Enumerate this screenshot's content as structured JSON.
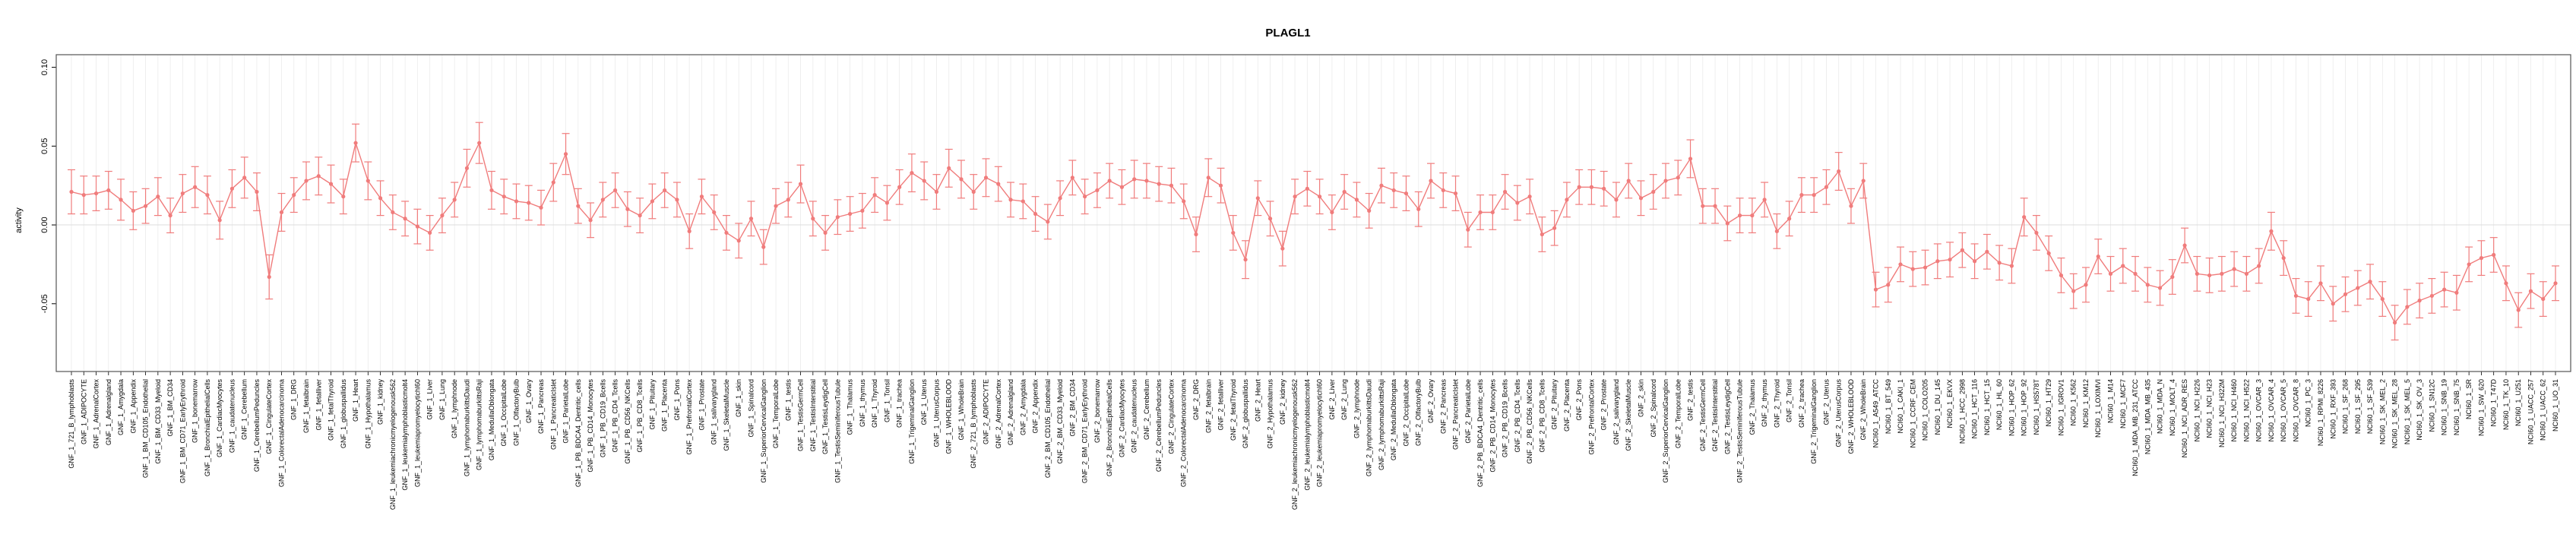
{
  "chart_data": {
    "type": "line",
    "title": "PLAGL1",
    "ylabel": "activity",
    "xlabel": "",
    "ylim": [
      -0.093,
      0.108
    ],
    "yticks": [
      -0.05,
      0.0,
      0.05,
      0.1
    ],
    "ytick_labels": [
      "-0.05",
      "0.00",
      "0.05",
      "0.10"
    ],
    "grid": true,
    "colors": {
      "series": "#f07c7c",
      "grid": "#ebebeb",
      "zero_line": "#dcdcdc",
      "frame": "#555555"
    },
    "categories": [
      "GNF_1_721_B_lymphoblasts",
      "GNF_1_ADIPOCYTE",
      "GNF_1_AdrenalCortex",
      "GNF_1_Adrenalgland",
      "GNF_1_Amygdala",
      "GNF_1_Appendix",
      "GNF_1_BM_CD105_Endothelial",
      "GNF_1_BM_CD33_Myeloid",
      "GNF_1_BM_CD34",
      "GNF_1_BM_CD71_EarlyErythroid",
      "GNF_1_bonemarrow",
      "GNF_1_BronchialEpithelialCells",
      "GNF_1_CardiacMyocytes",
      "GNF_1_caudatenucleus",
      "GNF_1_Cerebellum",
      "GNF_1_CerebellumPeduncles",
      "GNF_1_CingulateCortex",
      "GNF_1_ColorectalAdenocarcinoma",
      "GNF_1_DRG",
      "GNF_1_fetalbrain",
      "GNF_1_fetalliver",
      "GNF_1_fetalThyroid",
      "GNF_1_globuspallidus",
      "GNF_1_Heart",
      "GNF_1_Hypothalamus",
      "GNF_1_kidney",
      "GNF_1_leukemiachronicmyelogenousk562",
      "GNF_1_leukemialymphoblasticmolt4",
      "GNF_1_leukemiapromyelocytichl60",
      "GNF_1_Liver",
      "GNF_1_Lung",
      "GNF_1_lymphnode",
      "GNF_1_lymphomaburkittsDaudi",
      "GNF_1_lymphomaburkittsRaji",
      "GNF_1_MedullaOblongata",
      "GNF_1_OccipitalLobe",
      "GNF_1_OlfactoryBulb",
      "GNF_1_Ovary",
      "GNF_1_Pancreas",
      "GNF_1_PancreaticIslet",
      "GNF_1_ParietalLobe",
      "GNF_1_PB_BDCA4_Dentritic_cells",
      "GNF_1_PB_CD14_Monocytes",
      "GNF_1_PB_CD19_Bcells",
      "GNF_1_PB_CD4_Tcells",
      "GNF_1_PB_CD56_NKCells",
      "GNF_1_PB_CD8_Tcells",
      "GNF_1_Pituitary",
      "GNF_1_Placenta",
      "GNF_1_Pons",
      "GNF_1_PrefrontalCortex",
      "GNF_1_Prostate",
      "GNF_1_salivarygland",
      "GNF_1_SkeletalMuscle",
      "GNF_1_skin",
      "GNF_1_Spinalcord",
      "GNF_1_SuperiorCervicalGanglion",
      "GNF_1_TemporalLobe",
      "GNF_1_testis",
      "GNF_1_TestisGermCell",
      "GNF_1_TestisInterstitial",
      "GNF_1_TestisLeydigCell",
      "GNF_1_TestisSeminiferousTubule",
      "GNF_1_Thalamus",
      "GNF_1_thymus",
      "GNF_1_Thyroid",
      "GNF_1_Tonsil",
      "GNF_1_trachea",
      "GNF_1_TrigeminalGanglion",
      "GNF_1_Uterus",
      "GNF_1_UterusCorpus",
      "GNF_1_WHOLEBLOOD",
      "GNF_1_WholeBrain",
      "GNF_2_721_B_lymphoblasts",
      "GNF_2_ADIPOCYTE",
      "GNF_2_AdrenalCortex",
      "GNF_2_Adrenalgland",
      "GNF_2_Amygdala",
      "GNF_2_Appendix",
      "GNF_2_BM_CD105_Endothelial",
      "GNF_2_BM_CD33_Myeloid",
      "GNF_2_BM_CD34",
      "GNF_2_BM_CD71_EarlyErythroid",
      "GNF_2_bonemarrow",
      "GNF_2_BronchialEpithelialCells",
      "GNF_2_CardiacMyocytes",
      "GNF_2_caudatenucleus",
      "GNF_2_Cerebellum",
      "GNF_2_CerebellumPeduncles",
      "GNF_2_CingulateCortex",
      "GNF_2_ColorectalAdenocarcinoma",
      "GNF_2_DRG",
      "GNF_2_fetalbrain",
      "GNF_2_fetalliver",
      "GNF_2_fetalThyroid",
      "GNF_2_globuspallidus",
      "GNF_2_Heart",
      "GNF_2_Hypothalamus",
      "GNF_2_kidney",
      "GNF_2_leukemiachronicmyelogenousk562",
      "GNF_2_leukemialymphoblasticmolt4",
      "GNF_2_leukemiapromyelocytichl60",
      "GNF_2_Liver",
      "GNF_2_Lung",
      "GNF_2_lymphnode",
      "GNF_2_lymphomaburkittsDaudi",
      "GNF_2_lymphomaburkittsRaji",
      "GNF_2_MedullaOblongata",
      "GNF_2_OccipitalLobe",
      "GNF_2_OlfactoryBulb",
      "GNF_2_Ovary",
      "GNF_2_Pancreas",
      "GNF_2_PancreaticIslet",
      "GNF_2_ParietalLobe",
      "GNF_2_PB_BDCA4_Dentritic_cells",
      "GNF_2_PB_CD14_Monocytes",
      "GNF_2_PB_CD19_Bcells",
      "GNF_2_PB_CD4_Tcells",
      "GNF_2_PB_CD56_NKCells",
      "GNF_2_PB_CD8_Tcells",
      "GNF_2_Pituitary",
      "GNF_2_Placenta",
      "GNF_2_Pons",
      "GNF_2_PrefrontalCortex",
      "GNF_2_Prostate",
      "GNF_2_salivarygland",
      "GNF_2_SkeletalMuscle",
      "GNF_2_skin",
      "GNF_2_Spinalcord",
      "GNF_2_SuperiorCervicalGanglion",
      "GNF_2_TemporalLobe",
      "GNF_2_testis",
      "GNF_2_TestisGermCell",
      "GNF_2_TestisInterstitial",
      "GNF_2_TestisLeydigCell",
      "GNF_2_TestisSeminiferousTubule",
      "GNF_2_Thalamus",
      "GNF_2_thymus",
      "GNF_2_Thyroid",
      "GNF_2_Tonsil",
      "GNF_2_trachea",
      "GNF_2_TrigeminalGanglion",
      "GNF_2_Uterus",
      "GNF_2_UterusCorpus",
      "GNF_2_WHOLEBLOOD",
      "GNF_2_WholeBrain",
      "NCI60_1_A549_ATCC",
      "NCI60_1_BT_549",
      "NCI60_1_CAKI_1",
      "NCI60_1_CCRF_CEM",
      "NCI60_1_COLO205",
      "NCI60_1_DU_145",
      "NCI60_1_EKVX",
      "NCI60_1_HCC_2998",
      "NCI60_1_HCT_116",
      "NCI60_1_HCT_15",
      "NCI60_1_HL_60",
      "NCI60_1_HOP_62",
      "NCI60_1_HOP_92",
      "NCI60_1_HS578T",
      "NCI60_1_HT29",
      "NCI60_1_IGROV1",
      "NCI60_1_K562",
      "NCI60_1_KM12",
      "NCI60_1_LOXIMVI",
      "NCI60_1_M14",
      "NCI60_1_MCF7",
      "NCI60_1_MDA_MB_231_ATCC",
      "NCI60_1_MDA_MB_435",
      "NCI60_1_MDA_N",
      "NCI60_1_MOLT_4",
      "NCI60_1_NCI_ADR_RES",
      "NCI60_1_NCI_H226",
      "NCI60_1_NCI_H23",
      "NCI60_1_NCI_H322M",
      "NCI60_1_NCI_H460",
      "NCI60_1_NCI_H522",
      "NCI60_1_OVCAR_3",
      "NCI60_1_OVCAR_4",
      "NCI60_1_OVCAR_5",
      "NCI60_1_OVCAR_8",
      "NCI60_1_PC_3",
      "NCI60_1_RPMI_8226",
      "NCI60_1_RXF_393",
      "NCI60_1_SF_268",
      "NCI60_1_SF_295",
      "NCI60_1_SF_539",
      "NCI60_1_SK_MEL_2",
      "NCI60_1_SK_MEL_28",
      "NCI60_1_SK_MEL_5",
      "NCI60_1_SK_OV_3",
      "NCI60_1_SN12C",
      "NCI60_1_SNB_19",
      "NCI60_1_SNB_75",
      "NCI60_1_SR",
      "NCI60_1_SW_620",
      "NCI60_1_T47D",
      "NCI60_1_TK_10",
      "NCI60_1_U251",
      "NCI60_1_UACC_257",
      "NCI60_1_UACC_62",
      "NCI60_1_UO_31"
    ],
    "values": [
      0.021,
      0.019,
      0.02,
      0.022,
      0.016,
      0.009,
      0.012,
      0.018,
      0.006,
      0.02,
      0.024,
      0.019,
      0.003,
      0.023,
      0.03,
      0.021,
      -0.033,
      0.008,
      0.019,
      0.028,
      0.031,
      0.026,
      0.018,
      0.052,
      0.028,
      0.017,
      0.008,
      0.004,
      -0.001,
      -0.005,
      0.006,
      0.016,
      0.036,
      0.052,
      0.022,
      0.018,
      0.015,
      0.014,
      0.011,
      0.027,
      0.045,
      0.012,
      0.003,
      0.016,
      0.022,
      0.01,
      0.006,
      0.015,
      0.022,
      0.016,
      -0.004,
      0.018,
      0.008,
      -0.005,
      -0.01,
      0.004,
      -0.014,
      0.012,
      0.016,
      0.026,
      0.004,
      -0.005,
      0.005,
      0.007,
      0.009,
      0.019,
      0.014,
      0.024,
      0.033,
      0.028,
      0.021,
      0.036,
      0.029,
      0.021,
      0.03,
      0.026,
      0.016,
      0.015,
      0.007,
      0.002,
      0.017,
      0.03,
      0.018,
      0.022,
      0.028,
      0.024,
      0.029,
      0.028,
      0.026,
      0.025,
      0.015,
      -0.006,
      0.03,
      0.025,
      -0.005,
      -0.022,
      0.017,
      0.004,
      -0.015,
      0.018,
      0.023,
      0.018,
      0.008,
      0.021,
      0.016,
      0.009,
      0.025,
      0.022,
      0.02,
      0.01,
      0.028,
      0.022,
      0.02,
      -0.003,
      0.008,
      0.008,
      0.021,
      0.014,
      0.018,
      -0.006,
      -0.002,
      0.016,
      0.024,
      0.024,
      0.023,
      0.016,
      0.028,
      0.017,
      0.021,
      0.028,
      0.03,
      0.042,
      0.012,
      0.012,
      0.001,
      0.006,
      0.006,
      0.016,
      -0.004,
      0.004,
      0.019,
      0.019,
      0.024,
      0.034,
      0.012,
      0.028,
      -0.041,
      -0.038,
      -0.025,
      -0.028,
      -0.027,
      -0.023,
      -0.022,
      -0.016,
      -0.023,
      -0.017,
      -0.024,
      -0.026,
      0.005,
      -0.005,
      -0.018,
      -0.032,
      -0.042,
      -0.038,
      -0.02,
      -0.031,
      -0.026,
      -0.031,
      -0.038,
      -0.04,
      -0.033,
      -0.013,
      -0.031,
      -0.032,
      -0.031,
      -0.028,
      -0.031,
      -0.026,
      -0.004,
      -0.021,
      -0.045,
      -0.047,
      -0.037,
      -0.05,
      -0.044,
      -0.04,
      -0.036,
      -0.047,
      -0.062,
      -0.052,
      -0.048,
      -0.045,
      -0.041,
      -0.043,
      -0.025,
      -0.021,
      -0.019,
      -0.037,
      -0.054,
      -0.042,
      -0.047,
      -0.037
    ],
    "errors": [
      0.014,
      0.012,
      0.011,
      0.012,
      0.013,
      0.012,
      0.011,
      0.012,
      0.011,
      0.012,
      0.013,
      0.012,
      0.012,
      0.012,
      0.013,
      0.012,
      0.014,
      0.012,
      0.011,
      0.012,
      0.012,
      0.012,
      0.011,
      0.012,
      0.012,
      0.011,
      0.011,
      0.011,
      0.011,
      0.011,
      0.011,
      0.011,
      0.012,
      0.013,
      0.012,
      0.011,
      0.011,
      0.011,
      0.011,
      0.012,
      0.013,
      0.011,
      0.011,
      0.011,
      0.011,
      0.011,
      0.011,
      0.011,
      0.011,
      0.011,
      0.011,
      0.011,
      0.011,
      0.011,
      0.011,
      0.011,
      0.011,
      0.011,
      0.011,
      0.012,
      0.011,
      0.011,
      0.011,
      0.011,
      0.011,
      0.011,
      0.011,
      0.011,
      0.012,
      0.012,
      0.011,
      0.012,
      0.012,
      0.011,
      0.012,
      0.011,
      0.011,
      0.011,
      0.011,
      0.011,
      0.011,
      0.011,
      0.011,
      0.011,
      0.011,
      0.011,
      0.012,
      0.011,
      0.011,
      0.011,
      0.011,
      0.011,
      0.012,
      0.011,
      0.011,
      0.012,
      0.011,
      0.011,
      0.011,
      0.011,
      0.011,
      0.011,
      0.011,
      0.011,
      0.011,
      0.011,
      0.011,
      0.011,
      0.011,
      0.011,
      0.011,
      0.011,
      0.011,
      0.011,
      0.011,
      0.011,
      0.011,
      0.011,
      0.011,
      0.011,
      0.011,
      0.011,
      0.011,
      0.011,
      0.011,
      0.011,
      0.011,
      0.011,
      0.011,
      0.011,
      0.011,
      0.012,
      0.011,
      0.011,
      0.011,
      0.011,
      0.011,
      0.011,
      0.011,
      0.011,
      0.011,
      0.011,
      0.011,
      0.012,
      0.011,
      0.011,
      0.011,
      0.011,
      0.011,
      0.011,
      0.011,
      0.011,
      0.011,
      0.011,
      0.011,
      0.011,
      0.011,
      0.011,
      0.012,
      0.011,
      0.011,
      0.011,
      0.011,
      0.011,
      0.011,
      0.011,
      0.011,
      0.011,
      0.011,
      0.011,
      0.011,
      0.011,
      0.011,
      0.011,
      0.011,
      0.011,
      0.011,
      0.011,
      0.012,
      0.011,
      0.011,
      0.011,
      0.011,
      0.011,
      0.011,
      0.011,
      0.011,
      0.011,
      0.011,
      0.011,
      0.011,
      0.011,
      0.011,
      0.011,
      0.011,
      0.011,
      0.011,
      0.011,
      0.011,
      0.011,
      0.011,
      0.011
    ]
  }
}
